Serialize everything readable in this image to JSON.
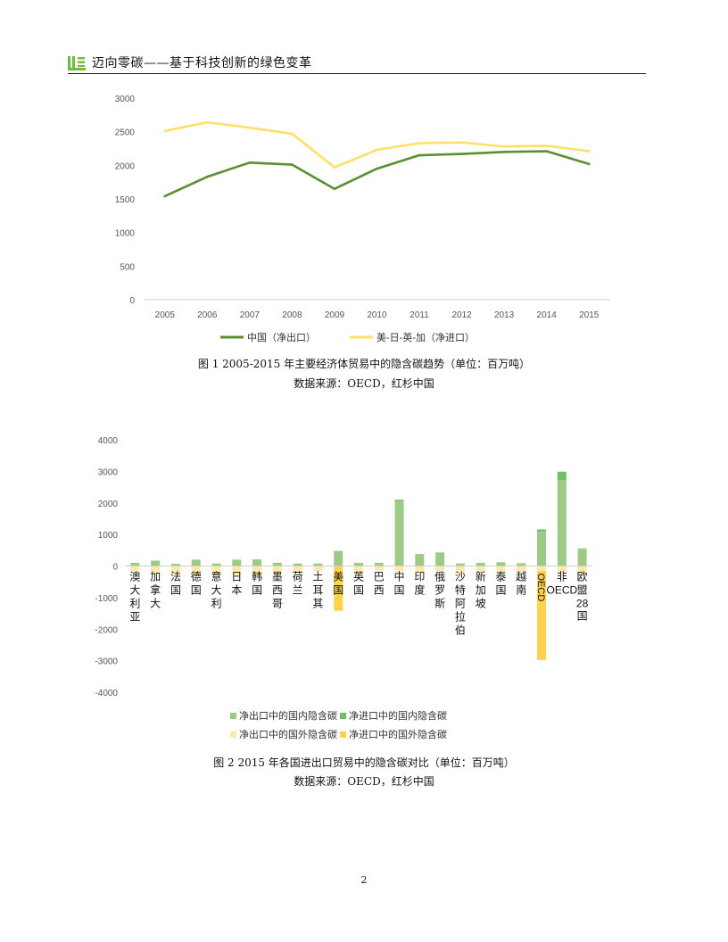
{
  "header": {
    "title": "迈向零碳——基于科技创新的绿色变革"
  },
  "figure1": {
    "caption": "图 1 2005-2015 年主要经济体贸易中的隐含碳趋势（单位：百万吨）",
    "source": "数据来源：OECD，红杉中国"
  },
  "figure2": {
    "caption": "图 2 2015 年各国进出口贸易中的隐含碳对比（单位：百万吨）",
    "source": "数据来源：OECD，红杉中国"
  },
  "page_number": "2",
  "chart_data": [
    {
      "type": "line",
      "x": [
        "2005",
        "2006",
        "2007",
        "2008",
        "2009",
        "2010",
        "2011",
        "2012",
        "2013",
        "2014",
        "2015"
      ],
      "ylim": [
        0,
        3000
      ],
      "yticks": [
        "0",
        "500",
        "1000",
        "1500",
        "2000",
        "2500",
        "3000"
      ],
      "grid": false,
      "legend_position": "bottom",
      "series": [
        {
          "name": "中国（净出口）",
          "color": "#5B8F2F",
          "values": [
            1540,
            1830,
            2040,
            2010,
            1650,
            1950,
            2150,
            2170,
            2200,
            2210,
            2020
          ]
        },
        {
          "name": "美-日-英-加（净进口）",
          "color": "#FFE066",
          "values": [
            2510,
            2640,
            2560,
            2470,
            1970,
            2230,
            2330,
            2340,
            2280,
            2290,
            2210
          ]
        }
      ]
    },
    {
      "type": "bar",
      "stacked": true,
      "categories": [
        "澳大利亚",
        "加拿大",
        "法国",
        "德国",
        "意大利",
        "日本",
        "韩国",
        "墨西哥",
        "荷兰",
        "土耳其",
        "美国",
        "英国",
        "巴西",
        "中国",
        "印度",
        "俄罗斯",
        "沙特阿拉伯",
        "新加坡",
        "泰国",
        "越南",
        "OECD",
        "非OECD",
        "欧盟28国"
      ],
      "ylim": [
        -4000,
        4000
      ],
      "yticks": [
        "4000",
        "3000",
        "2000",
        "1000",
        "0",
        "-1000",
        "-2000",
        "-3000",
        "-4000"
      ],
      "grid": false,
      "legend_position": "bottom",
      "series": [
        {
          "name": "净出口中的国内隐含碳",
          "color": "#9DCB86",
          "values": [
            100,
            170,
            70,
            200,
            80,
            200,
            210,
            100,
            80,
            80,
            480,
            100,
            100,
            2060,
            380,
            430,
            80,
            100,
            120,
            90,
            1100,
            2720,
            560
          ]
        },
        {
          "name": "净进口中的国内隐含碳",
          "color": "#6CC160",
          "values": [
            0,
            0,
            0,
            0,
            0,
            0,
            0,
            0,
            0,
            0,
            0,
            0,
            0,
            40,
            0,
            0,
            0,
            0,
            0,
            0,
            60,
            270,
            0
          ]
        },
        {
          "name": "净出口中的国外隐含碳",
          "color": "#FFE8A8",
          "values": [
            -160,
            -220,
            -260,
            -300,
            -260,
            -290,
            -320,
            -240,
            -220,
            -170,
            0,
            -260,
            -140,
            -200,
            -230,
            -150,
            -220,
            -180,
            -200,
            -190,
            -160,
            -200,
            -230
          ]
        },
        {
          "name": "净进口中的国外隐含碳",
          "color": "#FFD24A",
          "values": [
            0,
            0,
            0,
            0,
            0,
            0,
            0,
            0,
            0,
            0,
            -1420,
            0,
            0,
            0,
            0,
            0,
            0,
            0,
            0,
            0,
            -2820,
            0,
            0
          ]
        }
      ]
    }
  ]
}
